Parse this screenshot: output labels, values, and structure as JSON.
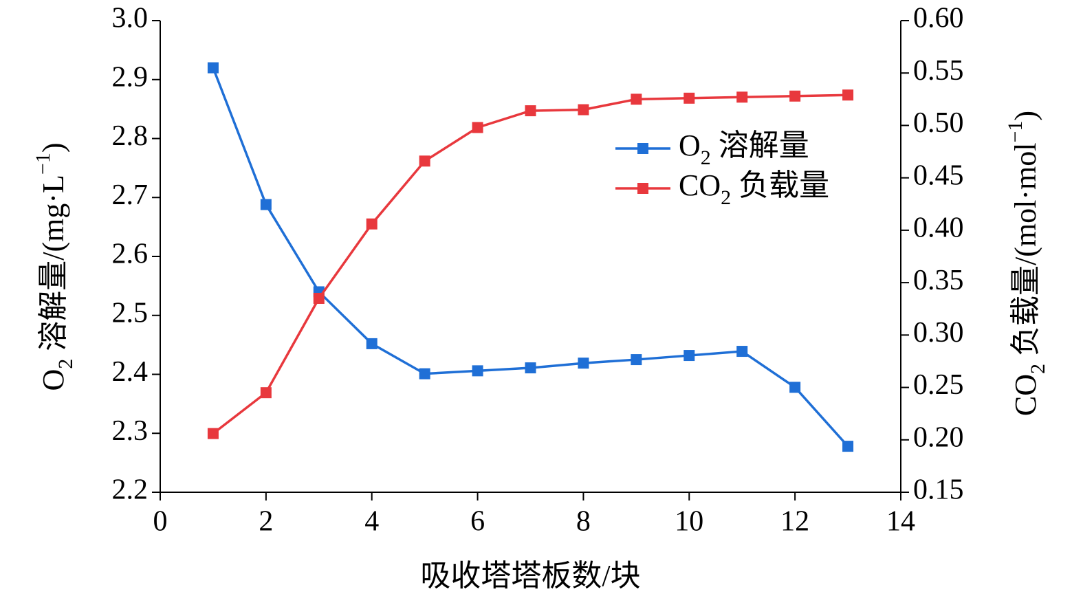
{
  "chart_data": {
    "type": "line",
    "title": "",
    "xlabel": "吸收塔塔板数/块",
    "ylabel_left": "O₂ 溶解量/(mg·L⁻¹)",
    "ylabel_right": "CO₂ 负载量/(mol·mol⁻¹)",
    "xlim": [
      0,
      14
    ],
    "ylim_left": [
      2.2,
      3.0
    ],
    "ylim_right": [
      0.15,
      0.6
    ],
    "x_ticks": [
      "0",
      "2",
      "4",
      "6",
      "8",
      "10",
      "12",
      "14"
    ],
    "y_left_ticks": [
      "2.2",
      "2.3",
      "2.4",
      "2.5",
      "2.6",
      "2.7",
      "2.8",
      "2.9",
      "3.0"
    ],
    "y_right_ticks": [
      "0.15",
      "0.20",
      "0.25",
      "0.30",
      "0.35",
      "0.40",
      "0.45",
      "0.50",
      "0.55",
      "0.60"
    ],
    "grid": false,
    "legend_position": "upper-right",
    "x": [
      1,
      2,
      3,
      4,
      5,
      6,
      7,
      8,
      9,
      10,
      11,
      12,
      13
    ],
    "series": [
      {
        "name": "O₂ 溶解量",
        "axis": "left",
        "color": "#1f6fd6",
        "values": [
          2.92,
          2.688,
          2.54,
          2.452,
          2.401,
          2.406,
          2.411,
          2.419,
          2.425,
          2.432,
          2.439,
          2.378,
          2.278
        ]
      },
      {
        "name": "CO₂ 负载量",
        "axis": "right",
        "color": "#e8383d",
        "values": [
          0.206,
          0.245,
          0.335,
          0.406,
          0.466,
          0.498,
          0.514,
          0.515,
          0.525,
          0.526,
          0.527,
          0.528,
          0.529
        ]
      }
    ]
  }
}
